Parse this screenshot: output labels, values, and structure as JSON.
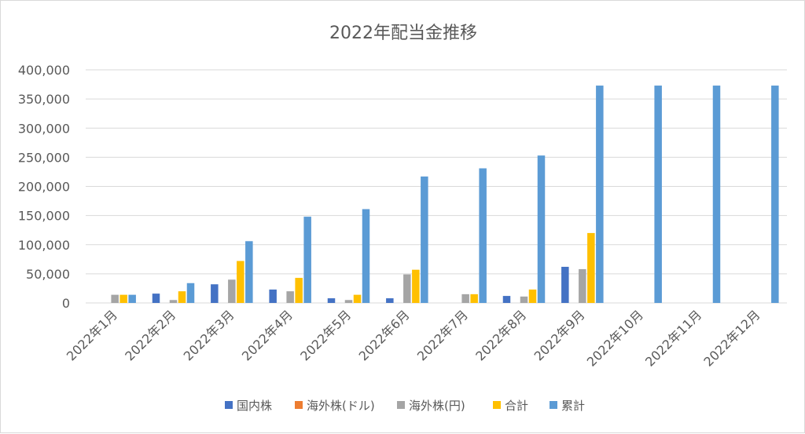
{
  "chart_data": {
    "type": "bar",
    "title": "2022年配当金推移",
    "categories": [
      "2022年1月",
      "2022年2月",
      "2022年3月",
      "2022年4月",
      "2022年5月",
      "2022年6月",
      "2022年7月",
      "2022年8月",
      "2022年9月",
      "2022年10月",
      "2022年11月",
      "2022年12月"
    ],
    "series": [
      {
        "name": "国内株",
        "color": "#4472c4",
        "values": [
          0,
          16000,
          32000,
          23000,
          8000,
          8000,
          0,
          12000,
          62000,
          0,
          0,
          0
        ]
      },
      {
        "name": "海外株(ドル)",
        "color": "#ed7d31",
        "values": [
          0,
          0,
          0,
          0,
          0,
          0,
          0,
          0,
          0,
          0,
          0,
          0
        ]
      },
      {
        "name": "海外株(円)",
        "color": "#a5a5a5",
        "values": [
          14000,
          5000,
          40000,
          20000,
          5000,
          49000,
          15000,
          11000,
          58000,
          0,
          0,
          0
        ]
      },
      {
        "name": "合計",
        "color": "#ffc000",
        "values": [
          14000,
          20000,
          72000,
          43000,
          14000,
          57000,
          15000,
          23000,
          120000,
          0,
          0,
          0
        ]
      },
      {
        "name": "累計",
        "color": "#5b9bd5",
        "values": [
          14000,
          34000,
          106000,
          148000,
          161000,
          217000,
          231000,
          253000,
          373000,
          373000,
          373000,
          373000
        ]
      }
    ],
    "yticks": [
      "0",
      "50,000",
      "100,000",
      "150,000",
      "200,000",
      "250,000",
      "300,000",
      "350,000",
      "400,000"
    ],
    "ylim": [
      0,
      400000
    ],
    "grid": true,
    "legend_position": "bottom"
  }
}
